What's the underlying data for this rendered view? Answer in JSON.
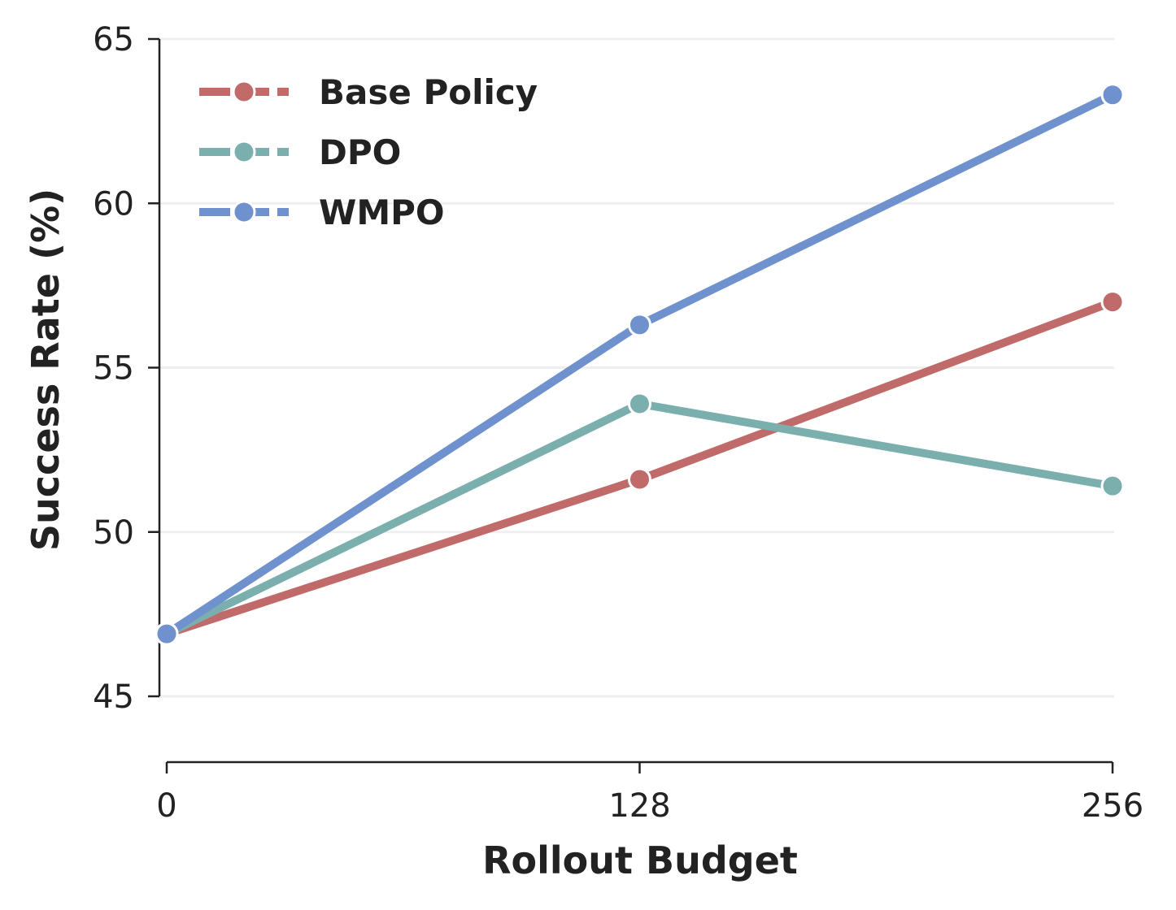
{
  "chart_data": {
    "type": "line",
    "title": "",
    "xlabel": "Rollout Budget",
    "ylabel": "Success Rate (%)",
    "x": [
      0,
      128,
      256
    ],
    "xticks": [
      "0",
      "128",
      "256"
    ],
    "yticks": [
      "45",
      "50",
      "55",
      "60",
      "65"
    ],
    "ylim": [
      45,
      65
    ],
    "xlim": [
      0,
      256
    ],
    "grid": "horizontal",
    "legend_position": "top-left",
    "series": [
      {
        "name": "Base Policy",
        "color": "#c06b69",
        "values": [
          46.9,
          51.6,
          57.0
        ]
      },
      {
        "name": "DPO",
        "color": "#7aafad",
        "values": [
          46.9,
          53.9,
          51.4
        ]
      },
      {
        "name": "WMPO",
        "color": "#6f91cd",
        "values": [
          46.9,
          56.3,
          63.3
        ]
      }
    ]
  }
}
